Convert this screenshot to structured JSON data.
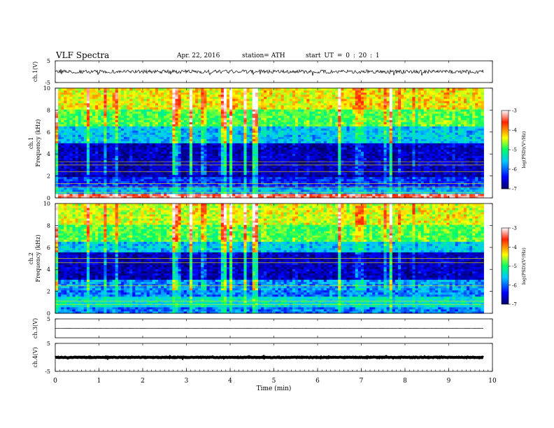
{
  "header": {
    "title": "VLF  Spectra",
    "date": "Apr. 22, 2016",
    "station": "station= ATH",
    "start_ut": "start  UT =   0 : 20 : 1"
  },
  "chart_data": {
    "type": "heatmap",
    "x_axis": {
      "label": "Time  (min)",
      "range": [
        0,
        10
      ],
      "ticks": [
        "0",
        "1",
        "2",
        "3",
        "4",
        "5",
        "6",
        "7",
        "8",
        "9",
        "10"
      ],
      "data_end": 9.8
    },
    "colorbar": {
      "label": "log(PSD)(V²/Hz)",
      "range": [
        -7,
        -3
      ],
      "ticks": [
        "-3",
        "-4",
        "-5",
        "-6",
        "-7"
      ],
      "colors": [
        "#000066",
        "#0000ff",
        "#00c8ff",
        "#00ff66",
        "#ffff00",
        "#ff2200",
        "#ffffff"
      ]
    },
    "panels": [
      {
        "id": "ch1-waveform",
        "kind": "waveform",
        "label": "ch.1(V)",
        "ylim": [
          -5,
          5
        ],
        "yticks": [
          "5",
          "-5"
        ],
        "baseline": 0,
        "amplitude": 0.8
      },
      {
        "id": "ch1-spectrogram",
        "kind": "spectrogram",
        "label": "ch.1",
        "ylabel": "Frequency  (kHz)",
        "ylim": [
          0,
          10
        ],
        "yticks": [
          "0",
          "2",
          "4",
          "6",
          "8",
          "10"
        ],
        "bands": [
          {
            "fmin": 0,
            "fmax": 0.3,
            "log_psd": -3.5
          },
          {
            "fmin": 0.3,
            "fmax": 1.0,
            "log_psd": -5.8
          },
          {
            "fmin": 1.0,
            "fmax": 2.0,
            "log_psd": -6.3
          },
          {
            "fmin": 2.0,
            "fmax": 5.0,
            "log_psd": -6.8
          },
          {
            "fmin": 5.0,
            "fmax": 6.5,
            "log_psd": -5.8
          },
          {
            "fmin": 6.5,
            "fmax": 8.0,
            "log_psd": -5.0
          },
          {
            "fmin": 8.0,
            "fmax": 10.0,
            "log_psd": -4.5
          }
        ],
        "lines_khz": [
          0.5,
          1.0,
          1.3,
          2.4,
          3.0,
          3.3
        ]
      },
      {
        "id": "ch2-spectrogram",
        "kind": "spectrogram",
        "label": "ch.2",
        "ylabel": "Frequency  (kHz)",
        "ylim": [
          0,
          10
        ],
        "yticks": [
          "0",
          "2",
          "4",
          "6",
          "8",
          "10"
        ],
        "bands": [
          {
            "fmin": 0,
            "fmax": 0.5,
            "log_psd": -6.0
          },
          {
            "fmin": 0.5,
            "fmax": 1.5,
            "log_psd": -5.5
          },
          {
            "fmin": 1.5,
            "fmax": 3.0,
            "log_psd": -6.0
          },
          {
            "fmin": 3.0,
            "fmax": 5.5,
            "log_psd": -6.8
          },
          {
            "fmin": 5.5,
            "fmax": 6.5,
            "log_psd": -5.8
          },
          {
            "fmin": 6.5,
            "fmax": 8.0,
            "log_psd": -5.0
          },
          {
            "fmin": 8.0,
            "fmax": 10.0,
            "log_psd": -4.6
          }
        ],
        "lines_khz": [
          0.8,
          1.1,
          2.5,
          4.6,
          5.0
        ]
      },
      {
        "id": "ch3-waveform",
        "kind": "waveform",
        "label": "ch.3(V)",
        "ylim": [
          -5,
          5
        ],
        "yticks": [
          "5"
        ],
        "baseline": 0,
        "amplitude": 0.03
      },
      {
        "id": "ch4-waveform",
        "kind": "waveform",
        "label": "ch.4(V)",
        "ylim": [
          -5,
          5
        ],
        "yticks": [
          "5",
          "-5"
        ],
        "baseline": 0,
        "amplitude": 0.12
      }
    ]
  }
}
